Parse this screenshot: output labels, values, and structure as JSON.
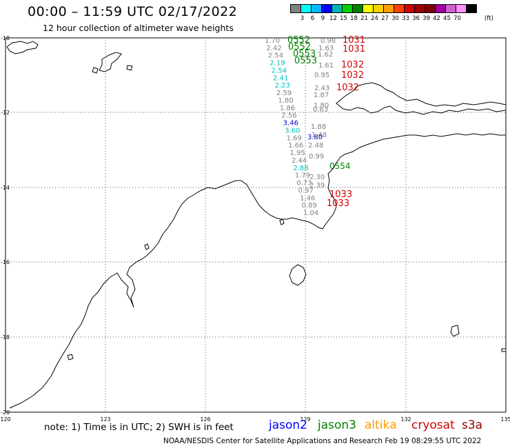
{
  "header": {
    "title": "00:00 – 11:59 UTC 02/17/2022",
    "subtitle": "12 hour collection of altimeter wave heights"
  },
  "colorbar": {
    "colors": [
      "#808080",
      "#00ffff",
      "#00bcff",
      "#0000ff",
      "#00b4b4",
      "#00d000",
      "#008000",
      "#ffff00",
      "#ffd000",
      "#ffa000",
      "#ff4000",
      "#d00000",
      "#a00000",
      "#800000",
      "#a000a0",
      "#d060d0",
      "#ff90ff",
      "#000000"
    ],
    "labels": [
      "3",
      "6",
      "9",
      "12",
      "15",
      "18",
      "21",
      "24",
      "27",
      "30",
      "33",
      "36",
      "39",
      "42",
      "45",
      "70"
    ],
    "unit": "(ft)"
  },
  "axes": {
    "lat_labels": [
      "-10",
      "-12",
      "-14",
      "-16",
      "-18",
      "-20"
    ],
    "lon_labels": [
      "120",
      "123",
      "126",
      "129",
      "132",
      "135"
    ]
  },
  "track": {
    "pass_labels": [
      {
        "text": "0552",
        "color": "#008000"
      },
      {
        "text": "0552",
        "color": "#008000"
      },
      {
        "text": "0553",
        "color": "#008000"
      },
      {
        "text": "0553",
        "color": "#008000"
      },
      {
        "text": "0554",
        "color": "#008000"
      },
      {
        "text": "1031",
        "color": "#d00000"
      },
      {
        "text": "1031",
        "color": "#d00000"
      },
      {
        "text": "1032",
        "color": "#d00000"
      },
      {
        "text": "1032",
        "color": "#d00000"
      },
      {
        "text": "1032",
        "color": "#d00000"
      },
      {
        "text": "1033",
        "color": "#d00000"
      },
      {
        "text": "1033",
        "color": "#d00000"
      }
    ],
    "wave_heights_left": [
      {
        "text": "1.70",
        "color": "#808080"
      },
      {
        "text": "2.42",
        "color": "#808080"
      },
      {
        "text": "2.54",
        "color": "#808080"
      },
      {
        "text": "2.19",
        "color": "#00bcbc"
      },
      {
        "text": "2.54",
        "color": "#00bcbc"
      },
      {
        "text": "2.41",
        "color": "#00bcbc"
      },
      {
        "text": "2.23",
        "color": "#00bcbc"
      },
      {
        "text": "2.59",
        "color": "#808080"
      },
      {
        "text": "1.80",
        "color": "#808080"
      },
      {
        "text": "1.86",
        "color": "#808080"
      },
      {
        "text": "2.56",
        "color": "#808080"
      },
      {
        "text": "3.46",
        "color": "#0000c0"
      },
      {
        "text": "3.60",
        "color": "#00bcbc"
      },
      {
        "text": "1.69",
        "color": "#808080"
      },
      {
        "text": "1.66",
        "color": "#808080"
      },
      {
        "text": "1.95",
        "color": "#808080"
      },
      {
        "text": "2.44",
        "color": "#808080"
      },
      {
        "text": "2.88",
        "color": "#00bcbc"
      },
      {
        "text": "1.79",
        "color": "#808080"
      },
      {
        "text": "0.73",
        "color": "#808080"
      },
      {
        "text": "0.97",
        "color": "#808080"
      },
      {
        "text": "1.46",
        "color": "#808080"
      },
      {
        "text": "0.89",
        "color": "#808080"
      },
      {
        "text": "1.04",
        "color": "#808080"
      }
    ],
    "wave_heights_right": [
      {
        "text": "0.98",
        "color": "#808080"
      },
      {
        "text": "1.63",
        "color": "#808080"
      },
      {
        "text": "1.62",
        "color": "#808080"
      },
      {
        "text": "1.61",
        "color": "#808080"
      },
      {
        "text": "0.95",
        "color": "#808080"
      },
      {
        "text": "2.43",
        "color": "#808080"
      },
      {
        "text": "1.87",
        "color": "#808080"
      },
      {
        "text": "1.80",
        "color": "#808080"
      },
      {
        "text": "0.63",
        "color": "#808080"
      },
      {
        "text": "1.88",
        "color": "#808080"
      },
      {
        "text": "1.48",
        "color": "#808080"
      },
      {
        "text": "3.80",
        "color": "#0000c0"
      },
      {
        "text": "2.48",
        "color": "#808080"
      },
      {
        "text": "0.99",
        "color": "#808080"
      },
      {
        "text": "2.30",
        "color": "#808080"
      },
      {
        "text": "2.39",
        "color": "#808080"
      }
    ]
  },
  "footer": {
    "note": "note: 1) Time is in UTC; 2) SWH is in feet",
    "legend": [
      {
        "name": "jason2",
        "color": "#0000ff"
      },
      {
        "name": "jason3",
        "color": "#008000"
      },
      {
        "name": "altika",
        "color": "#ff9900"
      },
      {
        "name": "cryosat",
        "color": "#d00000"
      },
      {
        "name": "s3a",
        "color": "#900000"
      }
    ],
    "credit": "NOAA/NESDIS Center for Satellite Applications and Research    Feb 19 08:29:55 UTC 2022"
  }
}
